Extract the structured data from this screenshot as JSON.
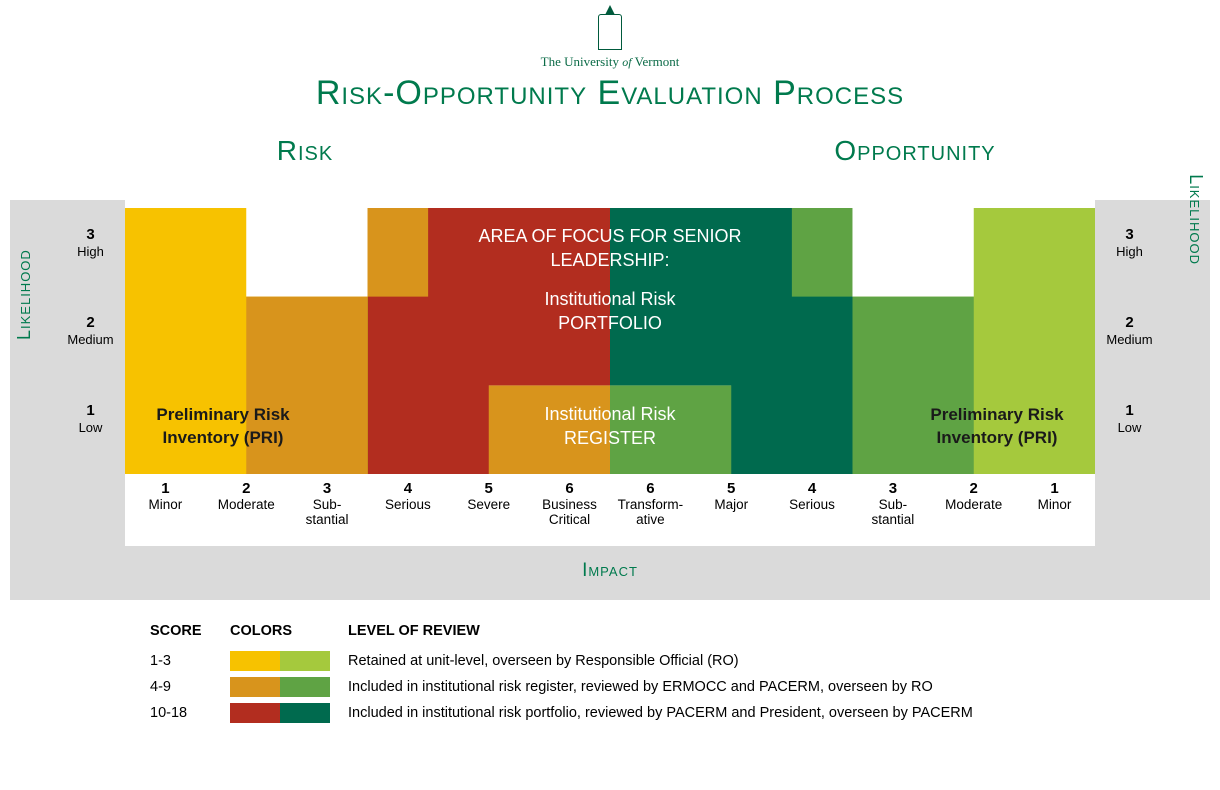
{
  "header": {
    "university": "The University of Vermont",
    "title": "Risk-Opportunity Evaluation Process"
  },
  "sections": {
    "left": "Risk",
    "right": "Opportunity"
  },
  "axes": {
    "y_title": "Likelihood",
    "x_title": "Impact",
    "y_ticks": [
      {
        "num": "3",
        "label": "High"
      },
      {
        "num": "2",
        "label": "Medium"
      },
      {
        "num": "1",
        "label": "Low"
      }
    ],
    "x_ticks_risk": [
      {
        "num": "1",
        "label": "Minor"
      },
      {
        "num": "2",
        "label": "Moderate"
      },
      {
        "num": "3",
        "label": "Sub-stantial"
      },
      {
        "num": "4",
        "label": "Serious"
      },
      {
        "num": "5",
        "label": "Severe"
      },
      {
        "num": "6",
        "label": "Business Critical"
      }
    ],
    "x_ticks_opp": [
      {
        "num": "6",
        "label": "Transform-ative"
      },
      {
        "num": "5",
        "label": "Major"
      },
      {
        "num": "4",
        "label": "Serious"
      },
      {
        "num": "3",
        "label": "Sub-stantial"
      },
      {
        "num": "2",
        "label": "Moderate"
      },
      {
        "num": "1",
        "label": "Minor"
      }
    ]
  },
  "zones": {
    "portfolio_line1": "AREA OF FOCUS FOR SENIOR",
    "portfolio_line2": "LEADERSHIP:",
    "portfolio_line3": "Institutional Risk",
    "portfolio_line4": "PORTFOLIO",
    "register_line1": "Institutional Risk",
    "register_line2": "REGISTER",
    "pri_line1": "Preliminary Risk",
    "pri_line2": "Inventory (PRI)"
  },
  "colors": {
    "risk_low": "#f7c200",
    "risk_mid": "#d8941c",
    "risk_high": "#b22d1f",
    "opp_low": "#a5c93d",
    "opp_mid": "#5fa344",
    "opp_high": "#006a4e",
    "uvm_green": "#007a4d",
    "gray_frame": "#dadada",
    "bg": "#ffffff"
  },
  "legend": {
    "headers": {
      "score": "SCORE",
      "colors": "COLORS",
      "level": "LEVEL OF REVIEW"
    },
    "rows": [
      {
        "score": "1-3",
        "c1": "#f7c200",
        "c2": "#a5c93d",
        "desc": "Retained at unit-level, overseen by Responsible Official (RO)"
      },
      {
        "score": "4-9",
        "c1": "#d8941c",
        "c2": "#5fa344",
        "desc": "Included in institutional risk register, reviewed by ERMOCC and PACERM, overseen by RO"
      },
      {
        "score": "10-18",
        "c1": "#b22d1f",
        "c2": "#006a4e",
        "desc": "Included in institutional risk portfolio, reviewed by PACERM and President, overseen by PACERM"
      }
    ]
  }
}
